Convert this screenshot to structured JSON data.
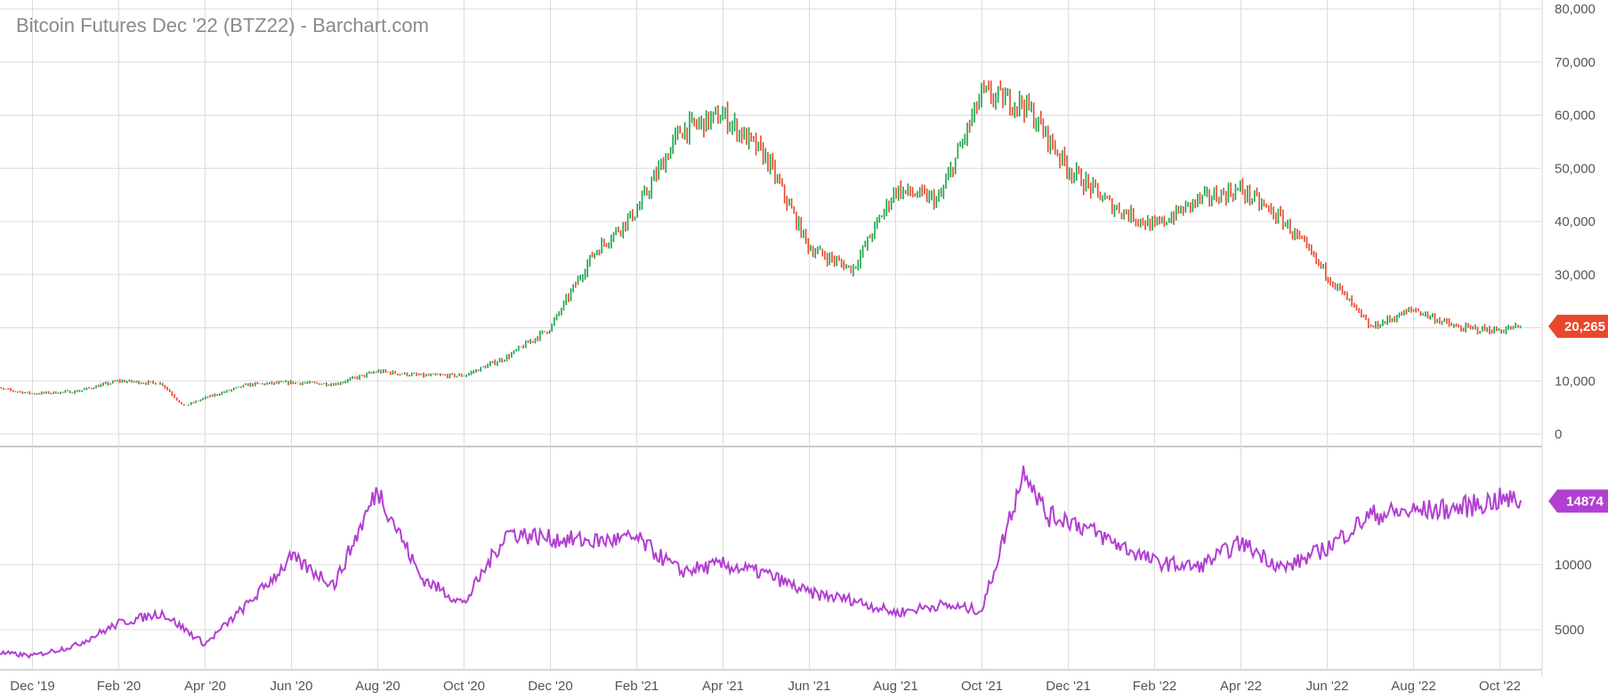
{
  "chart_data": [
    {
      "type": "candlestick",
      "title": "Bitcoin Futures Dec '22 (BTZ22) - Barchart.com",
      "ylim": [
        0,
        80000
      ],
      "y_ticks": [
        "0",
        "10,000",
        "20,000",
        "30,000",
        "40,000",
        "50,000",
        "60,000",
        "70,000",
        "80,000"
      ],
      "x_ticks": [
        "Dec '19",
        "Feb '20",
        "Apr '20",
        "Jun '20",
        "Aug '20",
        "Oct '20",
        "Dec '20",
        "Feb '21",
        "Apr '21",
        "Jun '21",
        "Aug '21",
        "Oct '21",
        "Dec '21",
        "Feb '22",
        "Apr '22",
        "Jun '22",
        "Aug '22",
        "Oct '22"
      ],
      "last_price_label": "20,265",
      "last_price": 20265,
      "up_color": "#1aa34a",
      "down_color": "#e8472b",
      "price_path": {
        "dates": [
          "Nov '19",
          "Dec '19",
          "Jan '20",
          "Feb '20",
          "Mar '20",
          "Mar '20",
          "Apr '20",
          "May '20",
          "Jun '20",
          "Jul '20",
          "Aug '20",
          "Sep '20",
          "Oct '20",
          "Nov '20",
          "Dec '20",
          "Jan '21",
          "Feb '21",
          "Mar '21",
          "Apr '21",
          "May '21",
          "Jun '21",
          "Jul '21",
          "Aug '21",
          "Sep '21",
          "Oct '21",
          "Nov '21",
          "Dec '21",
          "Jan '22",
          "Feb '22",
          "Mar '22",
          "Apr '22",
          "May '22",
          "Jun '22",
          "Jul '22",
          "Aug '22",
          "Sep '22",
          "Oct '22",
          "Oct '22"
        ],
        "values": [
          8800,
          7600,
          8000,
          10000,
          9500,
          5200,
          6800,
          9300,
          9700,
          9400,
          11800,
          11000,
          11000,
          14500,
          20000,
          34000,
          42000,
          57000,
          60000,
          52000,
          35000,
          31000,
          46000,
          44000,
          64000,
          62000,
          50000,
          43000,
          39000,
          44000,
          46000,
          40000,
          30000,
          20000,
          23500,
          20000,
          19500,
          20265
        ]
      }
    },
    {
      "type": "line",
      "y_ticks": [
        "5000",
        "10000"
      ],
      "y_tick_values": [
        5000,
        10000
      ],
      "ylim": [
        2000,
        19000
      ],
      "last_value_label": "14874",
      "line_color": "#b23fd1",
      "path": {
        "dates": [
          "Nov '19",
          "Dec '19",
          "Jan '20",
          "Feb '20",
          "Mar '20",
          "Apr '20",
          "May '20",
          "Jun '20",
          "Jul '20",
          "Aug '20",
          "Sep '20",
          "Oct '20",
          "Nov '20",
          "Dec '20",
          "Jan '21",
          "Feb '21",
          "Mar '21",
          "Apr '21",
          "May '21",
          "Jun '21",
          "Jul '21",
          "Aug '21",
          "Sep '21",
          "Oct '21",
          "Nov '21",
          "Nov '21",
          "Dec '21",
          "Jan '22",
          "Feb '22",
          "Mar '22",
          "Apr '22",
          "May '22",
          "Jun '22",
          "Jul '22",
          "Aug '22",
          "Sep '22",
          "Oct '22",
          "Oct '22"
        ],
        "values": [
          3300,
          3000,
          3800,
          5500,
          6300,
          3900,
          7000,
          10500,
          8500,
          15800,
          9000,
          7000,
          12500,
          12000,
          11800,
          12000,
          9500,
          10000,
          9300,
          7800,
          7300,
          6300,
          6900,
          6500,
          17500,
          13700,
          13500,
          11800,
          10200,
          9800,
          11700,
          9700,
          11300,
          13800,
          14100,
          14300,
          15000,
          14874
        ]
      }
    }
  ]
}
